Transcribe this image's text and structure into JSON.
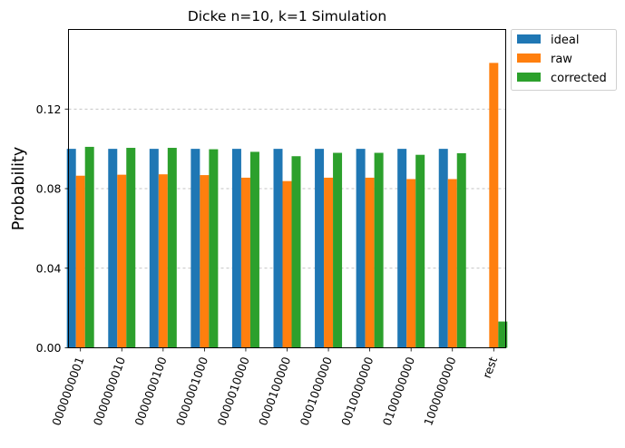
{
  "chart_data": {
    "type": "bar",
    "title": "Dicke n=10, k=1 Simulation",
    "xlabel": "",
    "ylabel": "Probability",
    "ylim": [
      0,
      0.16
    ],
    "yticks": [
      0.0,
      0.04,
      0.08,
      0.12
    ],
    "ytick_labels": [
      "0.00",
      "0.04",
      "0.08",
      "0.12"
    ],
    "grid": "y-dashed",
    "legend_position": "outside-top-right",
    "categories": [
      "0000000001",
      "0000000010",
      "0000000100",
      "0000001000",
      "0000010000",
      "0000100000",
      "0001000000",
      "0010000000",
      "0100000000",
      "1000000000",
      "rest"
    ],
    "series": [
      {
        "name": "ideal",
        "color": "#1f77b4",
        "values": [
          0.1,
          0.1,
          0.1,
          0.1,
          0.1,
          0.1,
          0.1,
          0.1,
          0.1,
          0.1,
          0.0
        ]
      },
      {
        "name": "raw",
        "color": "#ff7f0e",
        "values": [
          0.0865,
          0.087,
          0.0872,
          0.0868,
          0.0855,
          0.0838,
          0.0855,
          0.0855,
          0.0848,
          0.0848,
          0.1432
        ]
      },
      {
        "name": "corrected",
        "color": "#2ca02c",
        "values": [
          0.101,
          0.1005,
          0.1005,
          0.0998,
          0.0985,
          0.0963,
          0.098,
          0.098,
          0.097,
          0.0978,
          0.0132
        ]
      }
    ]
  }
}
